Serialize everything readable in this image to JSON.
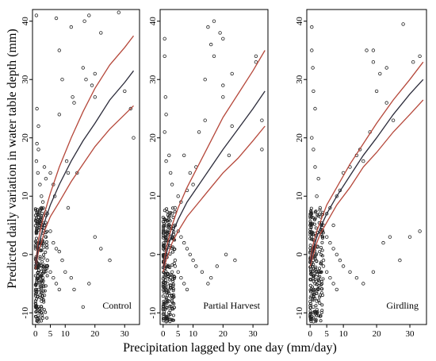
{
  "figure": {
    "ylabel": "Predicted daily variation in water table depth (mm)",
    "xlabel": "Precipitation lagged by one day (mm/day)"
  },
  "colors": {
    "fit": "#2b2b3a",
    "ci": "#b5473a",
    "points": "#222222"
  },
  "chart_data": [
    {
      "type": "scatter",
      "panel_label": "Control",
      "xlim": [
        -1,
        35
      ],
      "ylim": [
        -12,
        42
      ],
      "x_ticks": [
        0,
        5,
        10,
        20,
        30
      ],
      "y_ticks": [
        -10,
        0,
        10,
        20,
        30,
        40
      ],
      "points": [
        [
          0.3,
          41
        ],
        [
          18,
          41
        ],
        [
          28,
          41.5
        ],
        [
          7,
          40.5
        ],
        [
          12,
          39
        ],
        [
          16.5,
          40
        ],
        [
          22,
          38
        ],
        [
          8,
          35
        ],
        [
          9,
          30
        ],
        [
          12.5,
          27
        ],
        [
          13,
          26
        ],
        [
          16,
          32
        ],
        [
          17,
          30
        ],
        [
          19,
          29
        ],
        [
          20,
          31
        ],
        [
          20,
          27
        ],
        [
          30,
          28
        ],
        [
          32,
          25
        ],
        [
          33,
          20
        ],
        [
          8,
          24
        ],
        [
          10.5,
          16
        ],
        [
          11,
          14
        ],
        [
          14,
          14
        ],
        [
          11,
          8
        ],
        [
          5,
          14
        ],
        [
          6,
          12
        ],
        [
          6.5,
          10
        ],
        [
          3,
          15
        ],
        [
          2,
          10
        ],
        [
          2.5,
          9
        ],
        [
          3.5,
          13
        ],
        [
          1,
          22
        ],
        [
          0.5,
          25
        ],
        [
          0.5,
          19
        ],
        [
          1,
          18
        ],
        [
          0.3,
          16
        ],
        [
          0.8,
          14
        ],
        [
          1.5,
          12
        ],
        [
          2,
          8
        ],
        [
          1.5,
          6
        ],
        [
          3,
          5
        ],
        [
          3.5,
          3
        ],
        [
          4,
          7
        ],
        [
          5,
          4
        ],
        [
          6,
          2
        ],
        [
          7,
          1
        ],
        [
          8,
          0.5
        ],
        [
          9,
          -1
        ],
        [
          10,
          -3
        ],
        [
          12,
          -4
        ],
        [
          13,
          -6
        ],
        [
          16,
          -9
        ],
        [
          18,
          -5
        ],
        [
          20,
          3
        ],
        [
          22,
          1
        ],
        [
          25,
          -1
        ],
        [
          4,
          -2
        ],
        [
          5,
          -3
        ],
        [
          6,
          -4
        ],
        [
          7,
          -5
        ],
        [
          8,
          -6
        ],
        [
          3,
          -7
        ],
        [
          2,
          -8
        ],
        [
          1,
          -6
        ],
        [
          1.5,
          -5
        ],
        [
          2.5,
          -4
        ],
        [
          3,
          -3
        ],
        [
          4,
          -1
        ],
        [
          1,
          -9
        ],
        [
          2,
          -10
        ],
        [
          0.5,
          -11
        ],
        [
          1,
          -11.5
        ]
      ],
      "cluster": {
        "x_min": 0,
        "x_max": 4,
        "y_min": -11.5,
        "y_max": 8,
        "count": 220
      },
      "fit": {
        "x": [
          0,
          1,
          2,
          3,
          5,
          8,
          12,
          16,
          20,
          25,
          30,
          33
        ],
        "y": [
          -2,
          1.5,
          3.5,
          5.5,
          8.5,
          12,
          16,
          19.5,
          22.5,
          26.5,
          29.5,
          31.5
        ]
      },
      "ci_upper": {
        "x": [
          0,
          1,
          2,
          3,
          5,
          8,
          12,
          16,
          20,
          25,
          30,
          33
        ],
        "y": [
          -1.5,
          2.5,
          5,
          7,
          10.5,
          15,
          20,
          24.5,
          28.5,
          32.5,
          35.5,
          37.5
        ]
      },
      "ci_lower": {
        "x": [
          0,
          1,
          2,
          3,
          5,
          8,
          12,
          16,
          20,
          25,
          30,
          33
        ],
        "y": [
          -2.5,
          0.5,
          2,
          4,
          6.5,
          9,
          12.5,
          15.5,
          18.5,
          21.5,
          24,
          25.5
        ]
      }
    },
    {
      "type": "scatter",
      "panel_label": "Partial Harvest",
      "xlim": [
        -1,
        35
      ],
      "ylim": [
        -12,
        42
      ],
      "x_ticks": [
        0,
        5,
        10,
        20,
        30
      ],
      "y_ticks": [
        -10,
        0,
        10,
        20,
        30,
        40
      ],
      "points": [
        [
          0.5,
          37
        ],
        [
          0.5,
          34
        ],
        [
          0.8,
          27
        ],
        [
          1,
          24
        ],
        [
          0.5,
          21
        ],
        [
          15,
          39
        ],
        [
          17,
          40
        ],
        [
          19,
          38
        ],
        [
          20,
          37
        ],
        [
          16,
          36
        ],
        [
          17,
          34
        ],
        [
          14,
          30
        ],
        [
          23,
          31
        ],
        [
          31,
          34
        ],
        [
          31,
          33
        ],
        [
          20,
          29
        ],
        [
          20,
          27
        ],
        [
          23,
          22
        ],
        [
          22,
          17
        ],
        [
          33,
          23
        ],
        [
          33,
          18
        ],
        [
          14,
          23
        ],
        [
          12,
          21
        ],
        [
          11,
          15
        ],
        [
          9,
          14
        ],
        [
          10,
          12
        ],
        [
          8,
          11
        ],
        [
          6,
          9
        ],
        [
          5,
          10
        ],
        [
          4,
          8
        ],
        [
          7,
          17
        ],
        [
          2,
          17
        ],
        [
          1,
          16
        ],
        [
          2.5,
          14
        ],
        [
          3,
          12
        ],
        [
          3,
          7
        ],
        [
          4,
          5
        ],
        [
          5,
          4
        ],
        [
          6,
          3
        ],
        [
          7,
          2
        ],
        [
          8,
          1
        ],
        [
          9,
          0
        ],
        [
          10,
          -1
        ],
        [
          11,
          -2
        ],
        [
          13,
          -3
        ],
        [
          16,
          -4
        ],
        [
          18,
          -2
        ],
        [
          21,
          0
        ],
        [
          24,
          -1
        ],
        [
          15,
          -5
        ],
        [
          4,
          -2
        ],
        [
          5,
          -3
        ],
        [
          6,
          -4
        ],
        [
          7,
          -5
        ],
        [
          8,
          -6
        ],
        [
          3,
          -7
        ],
        [
          2,
          -8
        ],
        [
          1,
          -6
        ],
        [
          1.5,
          -5
        ],
        [
          2.5,
          -4
        ],
        [
          3,
          -3
        ],
        [
          4,
          -1
        ],
        [
          1,
          -9
        ],
        [
          2,
          -10
        ],
        [
          0.5,
          -11
        ],
        [
          1,
          -11.5
        ]
      ],
      "cluster": {
        "x_min": 0,
        "x_max": 4,
        "y_min": -11.5,
        "y_max": 8,
        "count": 220
      },
      "fit": {
        "x": [
          0,
          1,
          2,
          3,
          5,
          8,
          12,
          16,
          20,
          25,
          30,
          34
        ],
        "y": [
          -2.5,
          0,
          2,
          3.5,
          6,
          9,
          12,
          15,
          18,
          21.5,
          25,
          28
        ]
      },
      "ci_upper": {
        "x": [
          0,
          1,
          2,
          3,
          5,
          8,
          12,
          16,
          20,
          25,
          30,
          34
        ],
        "y": [
          -2,
          1,
          3,
          5,
          8,
          11.5,
          15.5,
          19.5,
          23.5,
          27.5,
          31.5,
          35
        ]
      },
      "ci_lower": {
        "x": [
          0,
          1,
          2,
          3,
          5,
          8,
          12,
          16,
          20,
          25,
          30,
          34
        ],
        "y": [
          -3,
          -1,
          0.5,
          2,
          4,
          6.5,
          9,
          11.5,
          14,
          16.5,
          19.5,
          22
        ]
      }
    },
    {
      "type": "scatter",
      "panel_label": "Girdling",
      "xlim": [
        -1,
        35
      ],
      "ylim": [
        -12,
        42
      ],
      "x_ticks": [
        0,
        5,
        10,
        20,
        30
      ],
      "y_ticks": [
        -10,
        0,
        10,
        20,
        30,
        40
      ],
      "points": [
        [
          0.5,
          39
        ],
        [
          28,
          39.5
        ],
        [
          0.5,
          35
        ],
        [
          0.8,
          32
        ],
        [
          1,
          28
        ],
        [
          1.5,
          25
        ],
        [
          17,
          35
        ],
        [
          19,
          35
        ],
        [
          19,
          33
        ],
        [
          21,
          31
        ],
        [
          23,
          32
        ],
        [
          31,
          33
        ],
        [
          33,
          34
        ],
        [
          20,
          28
        ],
        [
          23,
          26
        ],
        [
          25,
          23
        ],
        [
          18,
          21
        ],
        [
          15,
          18
        ],
        [
          16,
          16
        ],
        [
          14,
          17
        ],
        [
          12,
          15
        ],
        [
          10,
          14
        ],
        [
          9,
          11
        ],
        [
          8,
          10
        ],
        [
          6,
          8
        ],
        [
          5,
          7
        ],
        [
          7,
          5
        ],
        [
          3,
          8
        ],
        [
          2,
          10
        ],
        [
          2.5,
          13
        ],
        [
          1.5,
          15
        ],
        [
          0.5,
          20
        ],
        [
          1,
          18
        ],
        [
          4,
          5
        ],
        [
          5,
          3
        ],
        [
          6,
          2
        ],
        [
          7,
          1
        ],
        [
          8,
          0
        ],
        [
          9,
          -1
        ],
        [
          10,
          -2
        ],
        [
          12,
          -3
        ],
        [
          14,
          -4
        ],
        [
          16,
          -5
        ],
        [
          19,
          -3
        ],
        [
          22,
          2
        ],
        [
          24,
          3
        ],
        [
          27,
          -1
        ],
        [
          30,
          3
        ],
        [
          33,
          4
        ],
        [
          4,
          -2
        ],
        [
          5,
          -3
        ],
        [
          6,
          -4
        ],
        [
          7,
          -5
        ],
        [
          8,
          -6
        ],
        [
          3,
          -7
        ],
        [
          2,
          -8
        ],
        [
          1,
          -6
        ],
        [
          1.5,
          -5
        ],
        [
          2.5,
          -4
        ],
        [
          3,
          -3
        ],
        [
          4,
          -1
        ],
        [
          1,
          -9
        ],
        [
          2,
          -10
        ],
        [
          0.5,
          -11
        ],
        [
          1,
          -11.5
        ]
      ],
      "cluster": {
        "x_min": 0,
        "x_max": 4,
        "y_min": -11.5,
        "y_max": 8,
        "count": 220
      },
      "fit": {
        "x": [
          0,
          1,
          2,
          3,
          5,
          8,
          12,
          16,
          20,
          25,
          30,
          34
        ],
        "y": [
          -1.5,
          1,
          3,
          4.5,
          7,
          10,
          13.5,
          17,
          20,
          24,
          27.5,
          30
        ]
      },
      "ci_upper": {
        "x": [
          0,
          1,
          2,
          3,
          5,
          8,
          12,
          16,
          20,
          25,
          30,
          34
        ],
        "y": [
          -1,
          2,
          4,
          5.5,
          8.5,
          11.5,
          15.5,
          19,
          22.5,
          26.5,
          30,
          33
        ]
      },
      "ci_lower": {
        "x": [
          0,
          1,
          2,
          3,
          5,
          8,
          12,
          16,
          20,
          25,
          30,
          34
        ],
        "y": [
          -2,
          0,
          2,
          3.5,
          5.5,
          8.5,
          11.5,
          15,
          17.5,
          21,
          24,
          26.5
        ]
      }
    }
  ]
}
